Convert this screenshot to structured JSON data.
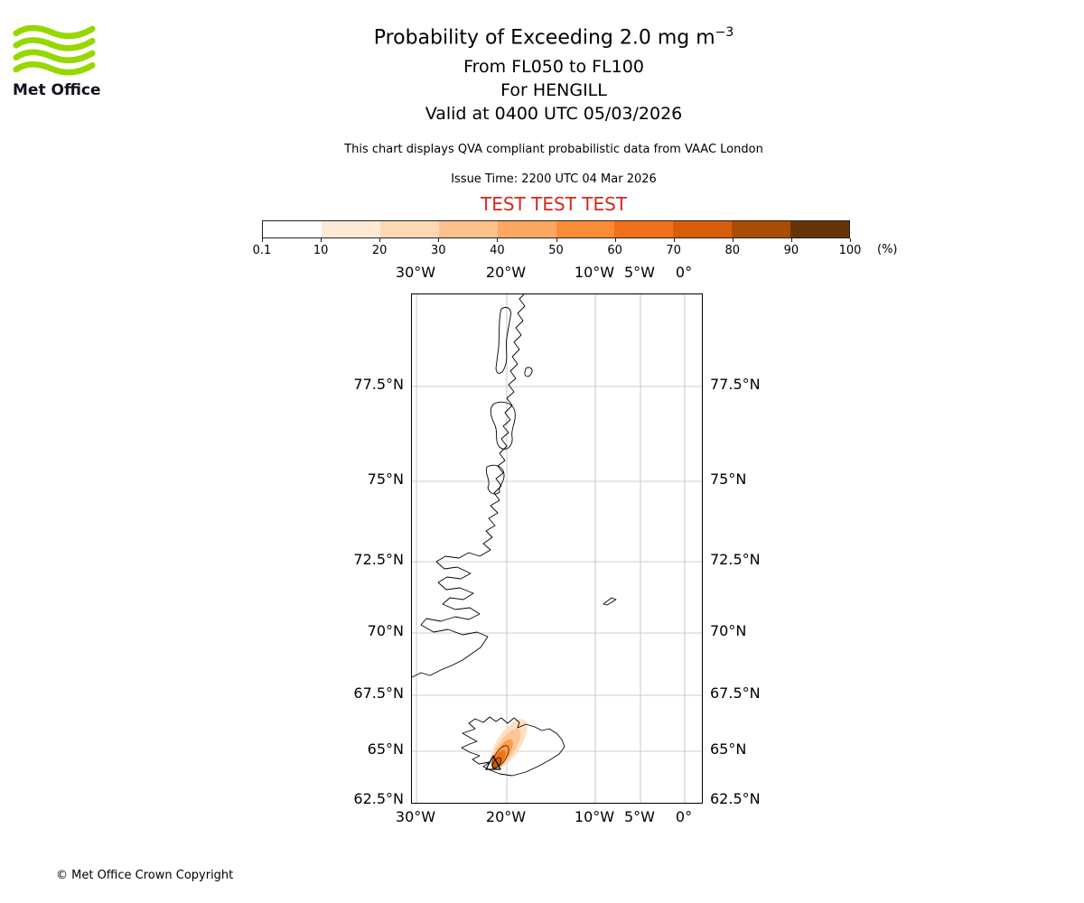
{
  "logo": {
    "text": "Met Office"
  },
  "header": {
    "title_prefix": "Probability of Exceeding 2.0 mg m",
    "title_superscript": "−3",
    "flight_levels": "From FL050 to FL100",
    "volcano_line": "For HENGILL",
    "valid_line": "Valid at 0400 UTC 05/03/2026",
    "qva_note": "This chart displays QVA compliant probabilistic data from VAAC London",
    "issue_time": "Issue Time: 2200 UTC 04 Mar 2026",
    "test_banner": "TEST TEST TEST"
  },
  "colorbar": {
    "unit": "(%)",
    "tick_labels": [
      "0.1",
      "10",
      "20",
      "30",
      "40",
      "50",
      "60",
      "70",
      "80",
      "90",
      "100"
    ],
    "segment_colors": [
      "#ffffff",
      "#fee9d4",
      "#fdd8b3",
      "#fdc28c",
      "#fda761",
      "#fb8c35",
      "#f0701b",
      "#d85d09",
      "#a94d04",
      "#663307"
    ]
  },
  "map": {
    "lon_labels": [
      "30°W",
      "20°W",
      "10°W",
      "5°W",
      "0°"
    ],
    "lat_labels": [
      "77.5°N",
      "75°N",
      "72.5°N",
      "70°N",
      "67.5°N",
      "65°N",
      "62.5°N"
    ]
  },
  "footer": {
    "copyright": "© Met Office Crown Copyright"
  },
  "chart_data": {
    "type": "heatmap",
    "title": "Probability of Exceeding 2.0 mg m−3",
    "threshold_mg_m3": 2.0,
    "layer": "From FL050 to FL100",
    "volcano": "HENGILL",
    "valid_time": "0400 UTC 05/03/2026",
    "issue_time": "2200 UTC 04 Mar 2026",
    "source": "VAAC London",
    "status": "TEST",
    "probability_scale_percent": [
      0.1,
      10,
      20,
      30,
      40,
      50,
      60,
      70,
      80,
      90,
      100
    ],
    "map_extent": {
      "lon_min": -30.5,
      "lon_max": 2.0,
      "lat_min": 62.5,
      "lat_max": 79.5
    },
    "lon_gridlines_deg": [
      -30,
      -20,
      -10,
      -5,
      0
    ],
    "lat_gridlines_deg": [
      77.5,
      75,
      72.5,
      70,
      67.5,
      65,
      62.5
    ],
    "plume": {
      "location": "southwest Iceland, extending northeast from the volcano",
      "orientation": "SW-NE",
      "center_lon": -20.3,
      "center_lat": 65.1,
      "max_probability_band_percent": "60-80",
      "volcano_marker": {
        "lon": -21.5,
        "lat": 64.4
      }
    },
    "features_shown": [
      "East Greenland coastline",
      "Iceland coastline",
      "Jan Mayen island"
    ]
  }
}
